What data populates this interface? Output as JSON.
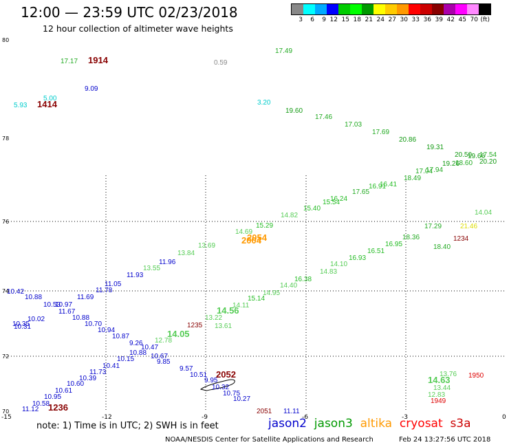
{
  "header": {
    "title": "12:00 — 23:59 UTC 02/23/2018",
    "subtitle": "12 hour collection of altimeter wave heights"
  },
  "legend": {
    "colors": [
      "#888888",
      "#00ffff",
      "#00aaff",
      "#0000ff",
      "#00cc00",
      "#00ff00",
      "#009900",
      "#ffff00",
      "#ffcc00",
      "#ff9900",
      "#ff0000",
      "#cc0000",
      "#880000",
      "#aa00aa",
      "#ff00ff",
      "#ff88ff",
      "#000000"
    ],
    "labels": [
      "3",
      "6",
      "9",
      "12",
      "15",
      "18",
      "21",
      "24",
      "27",
      "30",
      "33",
      "36",
      "39",
      "42",
      "45",
      "70",
      "(ft)"
    ]
  },
  "axes": {
    "x_ticks": [
      "-15",
      "-12",
      "-9",
      "-6",
      "-3",
      "0"
    ],
    "y_ticks": [
      "70",
      "72",
      "74",
      "76",
      "78",
      "80"
    ]
  },
  "wave_labels": [
    {
      "v": "17.49",
      "c": "#22aa22"
    },
    {
      "v": "17.17",
      "c": "#22aa22"
    },
    {
      "v": "1914",
      "c": "#880000"
    },
    {
      "v": "0.59",
      "c": "#888888"
    },
    {
      "v": "9.09",
      "c": "#0000cc"
    },
    {
      "v": "5.00",
      "c": "#00cccc"
    },
    {
      "v": "5.93",
      "c": "#00cccc"
    },
    {
      "v": "1414",
      "c": "#880000"
    },
    {
      "v": "3.20",
      "c": "#00cccc"
    },
    {
      "v": "19.60",
      "c": "#119911"
    },
    {
      "v": "17.46",
      "c": "#22aa22"
    },
    {
      "v": "17.03",
      "c": "#22aa22"
    },
    {
      "v": "17.69",
      "c": "#22aa22"
    },
    {
      "v": "20.86",
      "c": "#119911"
    },
    {
      "v": "19.31",
      "c": "#119911"
    },
    {
      "v": "20.50",
      "c": "#119911"
    },
    {
      "v": "17.54",
      "c": "#22aa22"
    },
    {
      "v": "19.66",
      "c": "#119911"
    },
    {
      "v": "18.60",
      "c": "#22aa22"
    },
    {
      "v": "20.20",
      "c": "#119911"
    },
    {
      "v": "19.26",
      "c": "#119911"
    },
    {
      "v": "17.94",
      "c": "#22aa22"
    },
    {
      "v": "17.04",
      "c": "#22aa22"
    },
    {
      "v": "18.49",
      "c": "#22aa22"
    },
    {
      "v": "16.41",
      "c": "#22bb22"
    },
    {
      "v": "16.91",
      "c": "#22bb22"
    },
    {
      "v": "17.65",
      "c": "#22aa22"
    },
    {
      "v": "16.24",
      "c": "#22bb22"
    },
    {
      "v": "15.54",
      "c": "#22bb22"
    },
    {
      "v": "15.40",
      "c": "#22bb22"
    },
    {
      "v": "14.82",
      "c": "#55cc55"
    },
    {
      "v": "15.29",
      "c": "#22bb22"
    },
    {
      "v": "2054",
      "c": "#ff9900"
    },
    {
      "v": "2004",
      "c": "#ff9900"
    },
    {
      "v": "14.69",
      "c": "#55cc55"
    },
    {
      "v": "13.69",
      "c": "#55cc55"
    },
    {
      "v": "13.84",
      "c": "#55cc55"
    },
    {
      "v": "11.96",
      "c": "#0000cc"
    },
    {
      "v": "11.93",
      "c": "#0000cc"
    },
    {
      "v": "13.55",
      "c": "#55cc55"
    },
    {
      "v": "11.05",
      "c": "#0000cc"
    },
    {
      "v": "11.78",
      "c": "#0000cc"
    },
    {
      "v": "11.69",
      "c": "#0000cc"
    },
    {
      "v": "10.42",
      "c": "#0000cc"
    },
    {
      "v": "10.88",
      "c": "#0000cc"
    },
    {
      "v": "10.53",
      "c": "#0000cc"
    },
    {
      "v": "10.97",
      "c": "#0000cc"
    },
    {
      "v": "11.67",
      "c": "#0000cc"
    },
    {
      "v": "10.02",
      "c": "#0000cc"
    },
    {
      "v": "10.35",
      "c": "#0000cc"
    },
    {
      "v": "10.31",
      "c": "#0000cc"
    },
    {
      "v": "10.88",
      "c": "#0000cc"
    },
    {
      "v": "10.70",
      "c": "#0000cc"
    },
    {
      "v": "10.94",
      "c": "#0000cc"
    },
    {
      "v": "10.87",
      "c": "#0000cc"
    },
    {
      "v": "9.26",
      "c": "#0000cc"
    },
    {
      "v": "10.47",
      "c": "#0000cc"
    },
    {
      "v": "10.88",
      "c": "#0000cc"
    },
    {
      "v": "10.67",
      "c": "#0000cc"
    },
    {
      "v": "10.15",
      "c": "#0000cc"
    },
    {
      "v": "10.41",
      "c": "#0000cc"
    },
    {
      "v": "11.73",
      "c": "#0000cc"
    },
    {
      "v": "10.39",
      "c": "#0000cc"
    },
    {
      "v": "10.60",
      "c": "#0000cc"
    },
    {
      "v": "10.61",
      "c": "#0000cc"
    },
    {
      "v": "10.95",
      "c": "#0000cc"
    },
    {
      "v": "10.58",
      "c": "#0000cc"
    },
    {
      "v": "11.12",
      "c": "#0000cc"
    },
    {
      "v": "1236",
      "c": "#880000"
    },
    {
      "v": "9.85",
      "c": "#0000cc"
    },
    {
      "v": "9.57",
      "c": "#0000cc"
    },
    {
      "v": "10.51",
      "c": "#0000cc"
    },
    {
      "v": "2052",
      "c": "#880000"
    },
    {
      "v": "9.95",
      "c": "#0000cc"
    },
    {
      "v": "10.32",
      "c": "#0000cc"
    },
    {
      "v": "10.75",
      "c": "#0000cc"
    },
    {
      "v": "10.27",
      "c": "#0000cc"
    },
    {
      "v": "2051",
      "c": "#880000"
    },
    {
      "v": "11.11",
      "c": "#0000cc"
    },
    {
      "v": "14.05",
      "c": "#55cc55"
    },
    {
      "v": "12.78",
      "c": "#55cc55"
    },
    {
      "v": "1235",
      "c": "#880000"
    },
    {
      "v": "13.61",
      "c": "#55cc55"
    },
    {
      "v": "13.22",
      "c": "#55cc55"
    },
    {
      "v": "14.56",
      "c": "#55cc55"
    },
    {
      "v": "14.11",
      "c": "#55cc55"
    },
    {
      "v": "15.14",
      "c": "#22bb22"
    },
    {
      "v": "14.95",
      "c": "#55cc55"
    },
    {
      "v": "14.40",
      "c": "#55cc55"
    },
    {
      "v": "16.38",
      "c": "#22bb22"
    },
    {
      "v": "14.83",
      "c": "#55cc55"
    },
    {
      "v": "14.10",
      "c": "#55cc55"
    },
    {
      "v": "16.93",
      "c": "#22bb22"
    },
    {
      "v": "16.51",
      "c": "#22bb22"
    },
    {
      "v": "16.95",
      "c": "#22bb22"
    },
    {
      "v": "18.36",
      "c": "#22aa22"
    },
    {
      "v": "17.29",
      "c": "#22aa22"
    },
    {
      "v": "18.40",
      "c": "#22aa22"
    },
    {
      "v": "1234",
      "c": "#880000"
    },
    {
      "v": "21.46",
      "c": "#dddd00"
    },
    {
      "v": "14.04",
      "c": "#55cc55"
    },
    {
      "v": "13.76",
      "c": "#55cc55"
    },
    {
      "v": "14.63",
      "c": "#55cc55"
    },
    {
      "v": "13.44",
      "c": "#55cc55"
    },
    {
      "v": "12.83",
      "c": "#55cc55"
    },
    {
      "v": "1949",
      "c": "#dd0000"
    },
    {
      "v": "1950",
      "c": "#dd0000"
    }
  ],
  "footer": {
    "note": "note:  1) Time is in UTC; 2) SWH is in feet",
    "satellites": [
      {
        "name": "jason2",
        "color": "#0000cc"
      },
      {
        "name": "jason3",
        "color": "#009900"
      },
      {
        "name": "altika",
        "color": "#ff9900"
      },
      {
        "name": "cryosat",
        "color": "#ff0000"
      },
      {
        "name": "s3a",
        "color": "#cc0000"
      }
    ],
    "credit": "NOAA/NESDIS Center for Satellite Applications and Research",
    "timestamp": "Feb 24 13:27:56 UTC 2018"
  }
}
